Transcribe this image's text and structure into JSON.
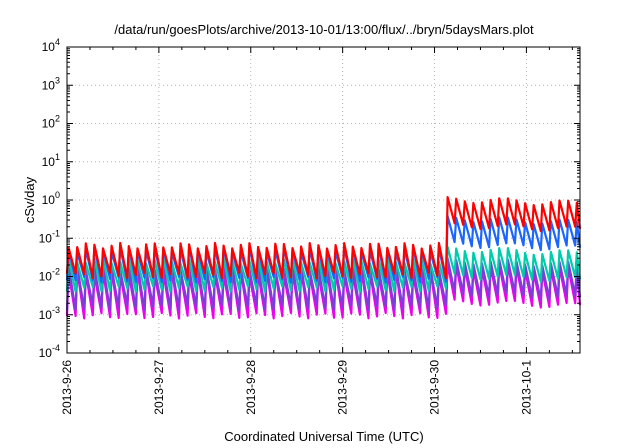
{
  "chart_data": {
    "type": "line",
    "title": "/data/run/goesPlots/archive/2013-10-01/13:00/flux/../bryn/5daysMars.plot",
    "xlabel": "Coordinated Universal Time (UTC)",
    "ylabel": "cSv/day",
    "x_range": [
      "2013-09-26T00:00",
      "2013-10-01T14:00"
    ],
    "x_tick_labels": [
      "2013-9-26",
      "2013-9-27",
      "2013-9-28",
      "2013-9-29",
      "2013-9-30",
      "2013-10-1"
    ],
    "y_scale": "log",
    "ylim": [
      0.0001,
      10000
    ],
    "y_tick_labels": [
      {
        "base": "10",
        "exp": "-4"
      },
      {
        "base": "10",
        "exp": "-3"
      },
      {
        "base": "10",
        "exp": "-2"
      },
      {
        "base": "10",
        "exp": "-1"
      },
      {
        "base": "10",
        "exp": "0"
      },
      {
        "base": "10",
        "exp": "1"
      },
      {
        "base": "10",
        "exp": "2"
      },
      {
        "base": "10",
        "exp": "3"
      },
      {
        "base": "10",
        "exp": "4"
      }
    ],
    "grid": true,
    "legend": "none",
    "sawtooth_period_hours": 2.25,
    "event_onset": "2013-09-30T03:00",
    "series": [
      {
        "color": "#ff0000",
        "quiet_peak": 0.075,
        "quiet_trough": 0.009,
        "event_peak": 1.2,
        "event_trough": 0.25
      },
      {
        "color": "#1a66ff",
        "quiet_peak": 0.06,
        "quiet_trough": 0.007,
        "event_peak": 0.38,
        "event_trough": 0.08
      },
      {
        "color": "#00ccaa",
        "quiet_peak": 0.03,
        "quiet_trough": 0.004,
        "event_peak": 0.06,
        "event_trough": 0.012
      },
      {
        "color": "#7a3fd9",
        "quiet_peak": 0.02,
        "quiet_trough": 0.0013,
        "event_peak": 0.03,
        "event_trough": 0.004
      },
      {
        "color": "#ee00ee",
        "quiet_peak": 0.015,
        "quiet_trough": 0.0008,
        "event_peak": 0.022,
        "event_trough": 0.0025
      }
    ]
  }
}
